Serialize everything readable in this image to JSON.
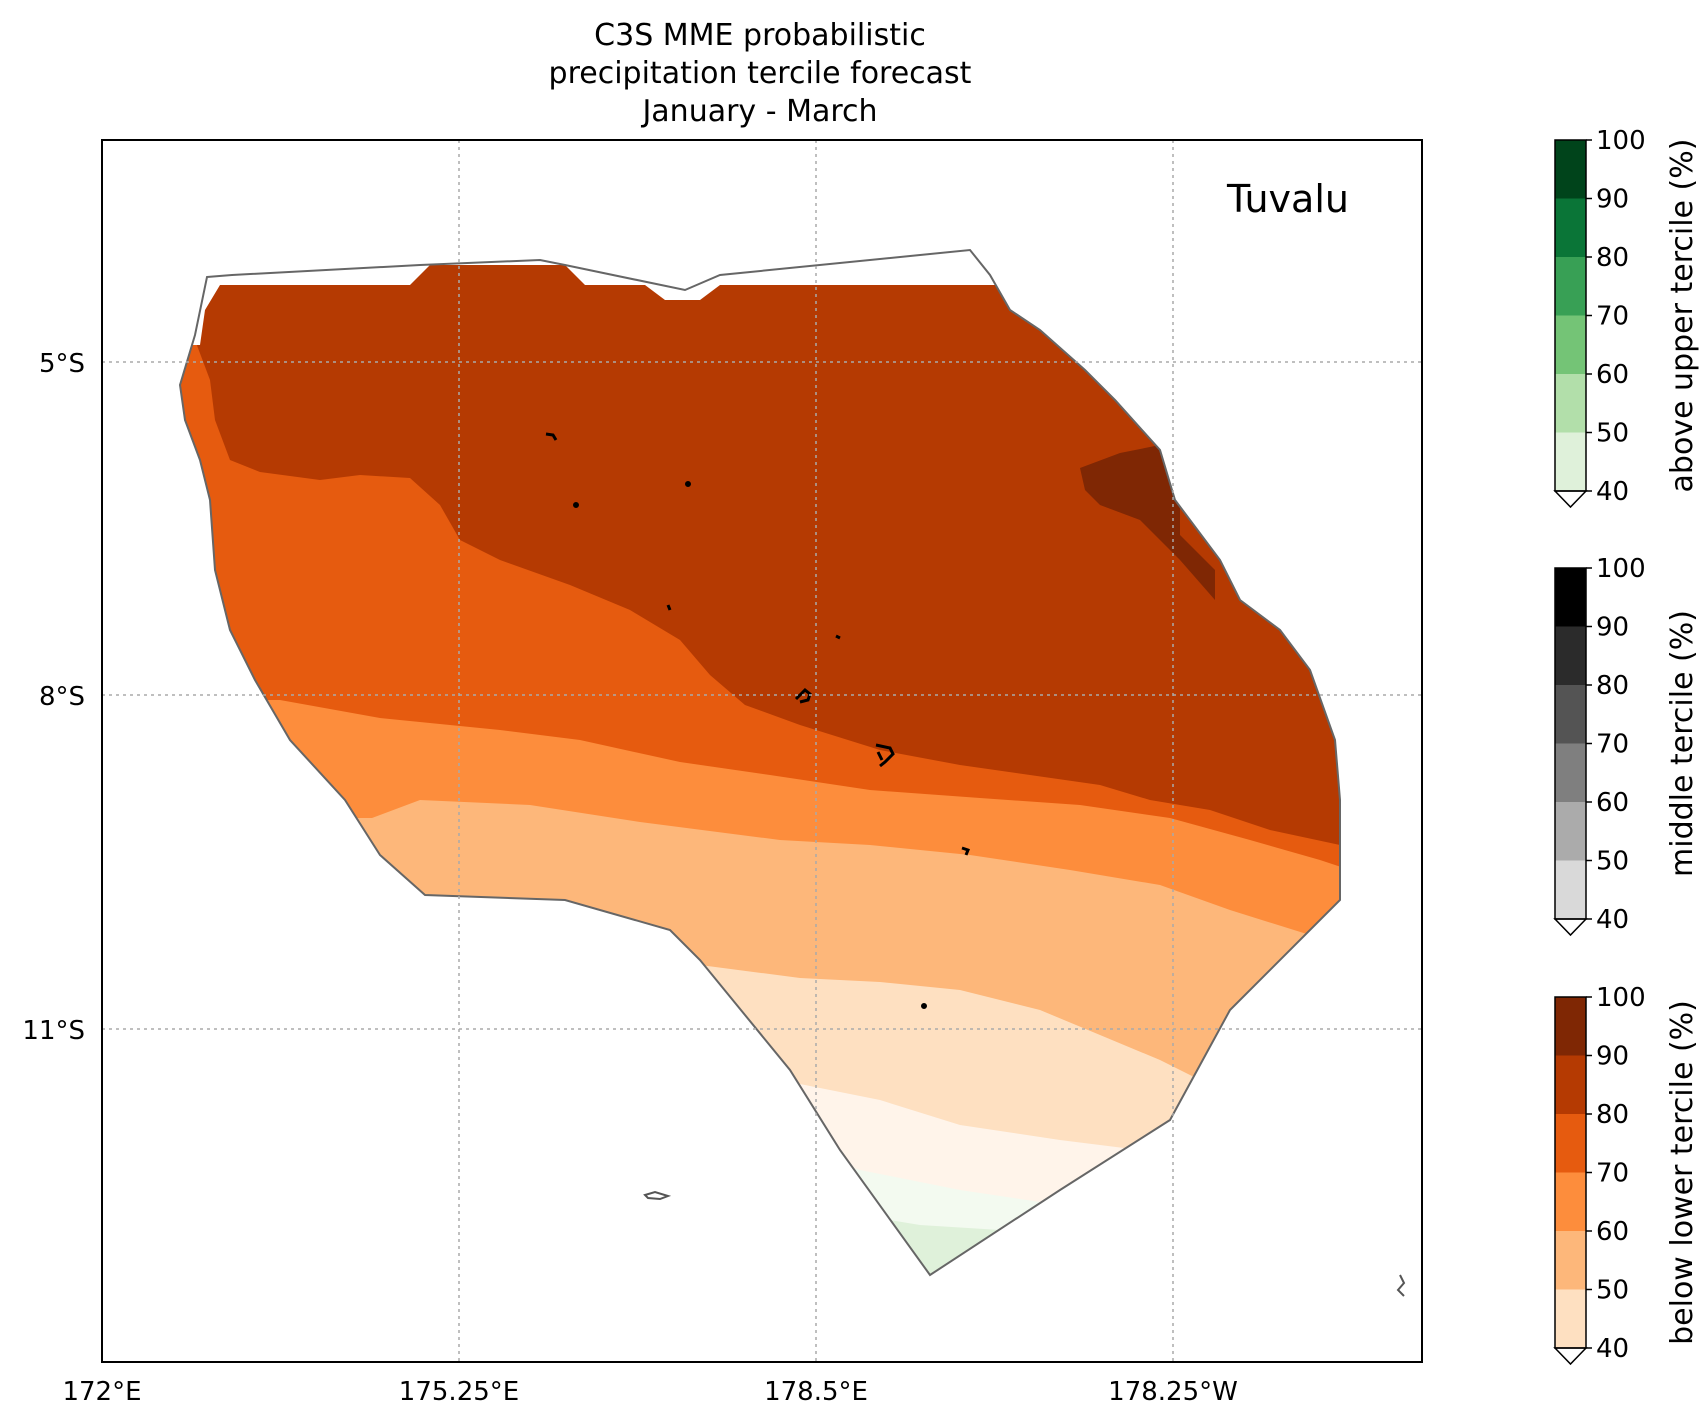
{
  "title": {
    "line1": "C3S MME probabilistic",
    "line2": "precipitation tercile forecast",
    "line3": "January - March"
  },
  "region_label": "Tuvalu",
  "axes": {
    "x_ticks": [
      "172°E",
      "175.25°E",
      "178.5°E",
      "178.25°W"
    ],
    "y_ticks": [
      "5°S",
      "8°S",
      "11°S"
    ],
    "grid": true
  },
  "colorbars": [
    {
      "label": "above upper tercile (%)",
      "ticks": [
        "100",
        "90",
        "80",
        "70",
        "60",
        "50",
        "40"
      ],
      "colors": [
        "#00441b",
        "#0a7537",
        "#38a055",
        "#74c476",
        "#b2dfaa",
        "#dff1da"
      ],
      "extend": "min"
    },
    {
      "label": "middle tercile (%)",
      "ticks": [
        "100",
        "90",
        "80",
        "70",
        "60",
        "50",
        "40"
      ],
      "colors": [
        "#000000",
        "#2b2b2b",
        "#545454",
        "#7f7f7f",
        "#ababab",
        "#d9d9d9"
      ],
      "extend": "min"
    },
    {
      "label": "below lower tercile (%)",
      "ticks": [
        "100",
        "90",
        "80",
        "70",
        "60",
        "50",
        "40"
      ],
      "colors": [
        "#7f2704",
        "#b53a02",
        "#e65b0f",
        "#fd8d3c",
        "#fdb77a",
        "#fee0c1"
      ],
      "extend": "min"
    }
  ],
  "fill_colors": {
    "below_90_100": "#7f2704",
    "below_80_90": "#b53a02",
    "below_70_80": "#e65b0f",
    "below_60_70": "#fd8d3c",
    "below_50_60": "#fdb77a",
    "below_40_50": "#fee0c1",
    "below_under_40": "#fff4ea",
    "above_under_40": "#f3faf0",
    "above_40_50": "#dff1da",
    "eez_outline": "#666666",
    "grid": "#aaaaaa"
  }
}
